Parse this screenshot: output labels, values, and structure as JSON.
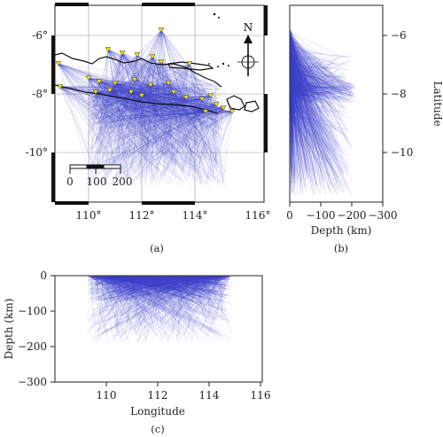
{
  "panel_a": {
    "caption": "(a)",
    "lat_ticks": [
      "-6°",
      "-8°",
      "-10°"
    ],
    "lon_ticks": [
      "110°",
      "112°",
      "114°",
      "116°"
    ],
    "north_label": "N",
    "scale_labels": [
      "0",
      "100",
      "200"
    ],
    "station_color": "#f2e40c",
    "ray_color": "#3b40c8"
  },
  "panel_b": {
    "caption": "(b)",
    "xlabel": "Depth (km)",
    "ylabel": "Latitude",
    "x_ticks": [
      "0",
      "−100",
      "−200",
      "−300"
    ],
    "y_ticks": [
      "−6",
      "−8",
      "−10"
    ]
  },
  "panel_c": {
    "caption": "(c)",
    "xlabel": "Longitude",
    "ylabel": "Depth (km)",
    "x_ticks": [
      "110",
      "112",
      "114",
      "116"
    ],
    "y_ticks": [
      "0",
      "−100",
      "−200",
      "−300"
    ]
  }
}
